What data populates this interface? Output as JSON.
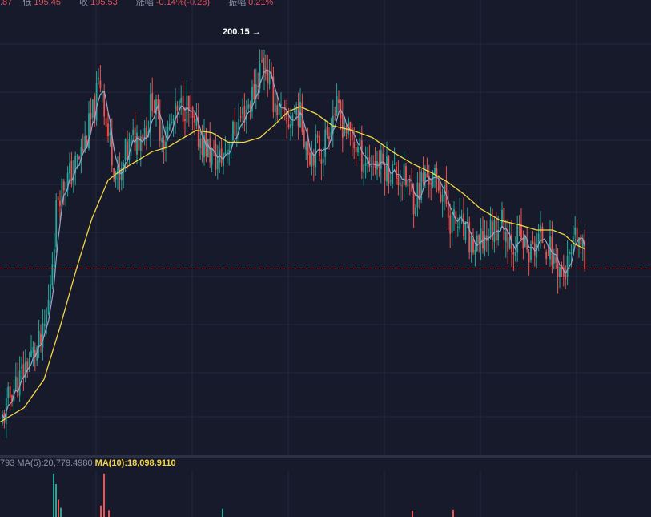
{
  "header": {
    "partial_value": ".87",
    "low_label": "低",
    "low_value": "195.45",
    "close_label": "收",
    "close_value": "195.53",
    "change_label": "涨幅",
    "change_value": "-0.14%(-0.28)",
    "amplitude_label": "振幅",
    "amplitude_value": "0.21%"
  },
  "colors": {
    "background": "#161a2b",
    "up": "#26a69a",
    "down": "#ef5350",
    "ma_long": "#f5d545",
    "ma_short": "#9aa3c9",
    "grid": "#222840",
    "last_price_line": "#ef5350"
  },
  "price_annotation": {
    "text": "200.15 →"
  },
  "volume_legend": {
    "truncated": "793",
    "ma5_label": "MA(5):",
    "ma5_value": "20,779.4980",
    "ma10_label": "MA(10):",
    "ma10_value": "18,098.9110"
  },
  "chart_data": {
    "type": "candlestick",
    "grid": true,
    "last_price": 195.53,
    "peak_high": 200.15,
    "ylim": [
      191.6,
      201.2
    ],
    "anchors": [
      [
        0,
        192.2
      ],
      [
        8,
        192.6
      ],
      [
        15,
        193.0
      ],
      [
        25,
        193.2
      ],
      [
        35,
        193.6
      ],
      [
        45,
        193.8
      ],
      [
        53,
        194.0
      ],
      [
        60,
        194.7
      ],
      [
        66,
        195.9
      ],
      [
        72,
        197.1
      ],
      [
        78,
        197.3
      ],
      [
        88,
        197.5
      ],
      [
        100,
        197.9
      ],
      [
        108,
        198.3
      ],
      [
        118,
        198.9
      ],
      [
        124,
        199.5
      ],
      [
        128,
        199.4
      ],
      [
        133,
        198.5
      ],
      [
        140,
        198.0
      ],
      [
        145,
        197.5
      ],
      [
        150,
        197.3
      ],
      [
        156,
        197.9
      ],
      [
        165,
        198.2
      ],
      [
        175,
        198.4
      ],
      [
        185,
        198.6
      ],
      [
        190,
        199.2
      ],
      [
        196,
        198.7
      ],
      [
        205,
        198.3
      ],
      [
        215,
        198.6
      ],
      [
        225,
        198.9
      ],
      [
        232,
        199.0
      ],
      [
        236,
        198.8
      ],
      [
        243,
        198.4
      ],
      [
        250,
        198.3
      ],
      [
        258,
        198.1
      ],
      [
        265,
        197.9
      ],
      [
        272,
        197.8
      ],
      [
        278,
        197.9
      ],
      [
        285,
        198.2
      ],
      [
        292,
        198.4
      ],
      [
        300,
        198.7
      ],
      [
        310,
        199.0
      ],
      [
        318,
        199.3
      ],
      [
        325,
        199.8
      ],
      [
        330,
        199.9
      ],
      [
        336,
        199.5
      ],
      [
        342,
        199.1
      ],
      [
        350,
        198.8
      ],
      [
        358,
        198.5
      ],
      [
        365,
        198.8
      ],
      [
        372,
        198.9
      ],
      [
        380,
        198.4
      ],
      [
        387,
        198.0
      ],
      [
        395,
        198.1
      ],
      [
        402,
        198.0
      ],
      [
        410,
        198.5
      ],
      [
        418,
        198.9
      ],
      [
        425,
        198.7
      ],
      [
        432,
        198.5
      ],
      [
        438,
        198.3
      ],
      [
        445,
        198.1
      ],
      [
        452,
        197.9
      ],
      [
        460,
        197.8
      ],
      [
        470,
        197.8
      ],
      [
        480,
        197.7
      ],
      [
        490,
        197.6
      ],
      [
        498,
        197.5
      ],
      [
        505,
        197.4
      ],
      [
        510,
        197.3
      ],
      [
        515,
        197.0
      ],
      [
        520,
        197.1
      ],
      [
        528,
        197.4
      ],
      [
        535,
        197.5
      ],
      [
        540,
        197.4
      ],
      [
        548,
        197.3
      ],
      [
        556,
        197.0
      ],
      [
        562,
        196.6
      ],
      [
        568,
        196.5
      ],
      [
        575,
        196.4
      ],
      [
        582,
        196.2
      ],
      [
        590,
        196.0
      ],
      [
        596,
        195.9
      ],
      [
        602,
        196.1
      ],
      [
        610,
        196.3
      ],
      [
        618,
        196.4
      ],
      [
        625,
        196.6
      ],
      [
        632,
        196.3
      ],
      [
        640,
        196.1
      ],
      [
        648,
        196.2
      ],
      [
        655,
        196.0
      ],
      [
        662,
        195.8
      ],
      [
        670,
        196.1
      ],
      [
        678,
        196.2
      ],
      [
        685,
        196.0
      ],
      [
        692,
        195.7
      ],
      [
        698,
        195.6
      ],
      [
        704,
        195.4
      ],
      [
        710,
        195.6
      ],
      [
        716,
        195.9
      ],
      [
        720,
        196.2
      ],
      [
        724,
        196.1
      ],
      [
        728,
        195.8
      ],
      [
        731,
        195.53
      ]
    ],
    "ma_long": [
      [
        0,
        192.3
      ],
      [
        30,
        192.6
      ],
      [
        55,
        193.2
      ],
      [
        75,
        194.3
      ],
      [
        95,
        195.5
      ],
      [
        115,
        196.6
      ],
      [
        135,
        197.4
      ],
      [
        150,
        197.6
      ],
      [
        170,
        197.8
      ],
      [
        190,
        198.0
      ],
      [
        210,
        198.1
      ],
      [
        230,
        198.3
      ],
      [
        245,
        198.45
      ],
      [
        265,
        198.4
      ],
      [
        285,
        198.2
      ],
      [
        305,
        198.2
      ],
      [
        325,
        198.3
      ],
      [
        345,
        198.6
      ],
      [
        360,
        198.85
      ],
      [
        375,
        198.95
      ],
      [
        395,
        198.8
      ],
      [
        415,
        198.55
      ],
      [
        440,
        198.45
      ],
      [
        465,
        198.3
      ],
      [
        490,
        198.0
      ],
      [
        515,
        197.75
      ],
      [
        540,
        197.55
      ],
      [
        560,
        197.35
      ],
      [
        580,
        197.1
      ],
      [
        600,
        196.8
      ],
      [
        625,
        196.55
      ],
      [
        650,
        196.45
      ],
      [
        670,
        196.35
      ],
      [
        690,
        196.35
      ],
      [
        705,
        196.25
      ],
      [
        718,
        196.05
      ],
      [
        730,
        195.95
      ]
    ],
    "volume": {
      "ma5": 20779.498,
      "ma10": 18098.911,
      "ymax": 100,
      "notable_bars": [
        {
          "x": 67,
          "value": 95,
          "color": "up"
        },
        {
          "x": 70,
          "value": 72,
          "color": "up"
        },
        {
          "x": 73,
          "value": 38,
          "color": "down"
        },
        {
          "x": 76,
          "value": 20,
          "color": "up"
        },
        {
          "x": 126,
          "value": 25,
          "color": "down"
        },
        {
          "x": 130,
          "value": 95,
          "color": "down"
        },
        {
          "x": 136,
          "value": 15,
          "color": "down"
        },
        {
          "x": 278,
          "value": 18,
          "color": "up"
        },
        {
          "x": 515,
          "value": 14,
          "color": "down"
        },
        {
          "x": 566,
          "value": 16,
          "color": "down"
        }
      ]
    }
  }
}
